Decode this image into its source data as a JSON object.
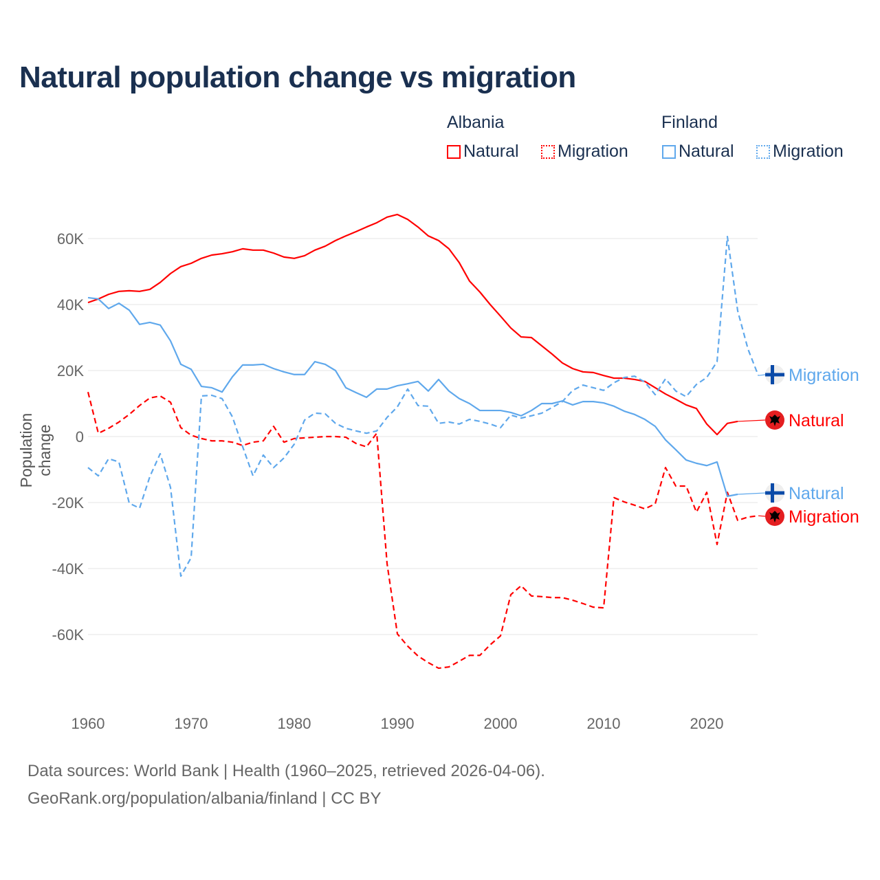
{
  "title": "Natural population change vs migration",
  "legend": {
    "groups": [
      {
        "name": "Albania",
        "items": [
          {
            "label": "Natural",
            "style": "solid",
            "color": "#ff0000"
          },
          {
            "label": "Migration",
            "style": "dotted",
            "color": "#ff0000"
          }
        ]
      },
      {
        "name": "Finland",
        "items": [
          {
            "label": "Natural",
            "style": "solid",
            "color": "#5fa8ec"
          },
          {
            "label": "Migration",
            "style": "dotted",
            "color": "#5fa8ec"
          }
        ]
      }
    ]
  },
  "source": {
    "line1": "Data sources: World Bank | Health (1960–2025, retrieved 2026-04-06).",
    "line2": "GeoRank.org/population/albania/finland | CC BY"
  },
  "chart_data": {
    "type": "line",
    "title": "Natural population change vs migration",
    "xlabel": "",
    "ylabel": "Population change",
    "xlim": [
      1960,
      2025
    ],
    "ylim": [
      -80000,
      70000
    ],
    "xticks": [
      1960,
      1970,
      1980,
      1990,
      2000,
      2010,
      2020
    ],
    "xtick_labels": [
      "1960",
      "1970",
      "1980",
      "1990",
      "2000",
      "2010",
      "2020"
    ],
    "yticks": [
      60000,
      40000,
      20000,
      0,
      -20000,
      -40000,
      -60000
    ],
    "ytick_labels": [
      "60K",
      "40K",
      "20K",
      "0",
      "-20K",
      "-40K",
      "-60K"
    ],
    "grid": true,
    "legend_position": "top-right",
    "series": [
      {
        "name": "Albania Natural",
        "end_label": "Natural",
        "country": "Albania",
        "color": "#ff0000",
        "dash": false,
        "start": 1960,
        "values": [
          40.6,
          41.7,
          43.1,
          44,
          44.2,
          44,
          44.6,
          46.7,
          49.4,
          51.5,
          52.5,
          54,
          55,
          55.4,
          56,
          56.9,
          56.5,
          56.5,
          55.6,
          54.4,
          54,
          54.8,
          56.5,
          57.7,
          59.4,
          60.8,
          62.1,
          63.5,
          64.8,
          66.5,
          67.3,
          65.8,
          63.5,
          60.8,
          59.4,
          56.9,
          52.7,
          47.1,
          43.8,
          40,
          36.5,
          32.9,
          30.2,
          30,
          27.5,
          25,
          22.3,
          20.6,
          19.6,
          19.4,
          18.5,
          17.7,
          17.7,
          17.3,
          16.7,
          14.8,
          12.9,
          11.3,
          9.6,
          8.5,
          3.8,
          0.6,
          4,
          4.6
        ]
      },
      {
        "name": "Albania Migration",
        "end_label": "Migration",
        "country": "Albania",
        "color": "#ff0000",
        "dash": true,
        "start": 1960,
        "values": [
          13.5,
          1,
          2.5,
          4.4,
          6.7,
          9.4,
          11.7,
          12.3,
          10.4,
          2.7,
          0.4,
          -0.6,
          -1.3,
          -1.3,
          -1.7,
          -2.7,
          -1.7,
          -1.3,
          3.1,
          -1.7,
          -0.6,
          -0.4,
          -0.2,
          0,
          0,
          -0.2,
          -2.1,
          -3.1,
          1,
          -38.5,
          -59.8,
          -63.5,
          -66.5,
          -68.5,
          -70.2,
          -69.8,
          -68.1,
          -66.3,
          -66.3,
          -63.1,
          -60.4,
          -47.9,
          -45.2,
          -48.3,
          -48.5,
          -48.8,
          -48.8,
          -49.6,
          -50.6,
          -51.7,
          -51.9,
          -18.5,
          -19.8,
          -20.8,
          -21.9,
          -20.4,
          -9.4,
          -15,
          -15,
          -22.9,
          -16.9,
          -32.7,
          -16.9,
          -25.4,
          -24.4,
          -24
        ]
      },
      {
        "name": "Finland Natural",
        "end_label": "Natural",
        "country": "Finland",
        "color": "#5fa8ec",
        "dash": false,
        "start": 1960,
        "values": [
          42.1,
          41.7,
          38.8,
          40.4,
          38.3,
          34,
          34.6,
          33.8,
          29,
          21.9,
          20.4,
          15.2,
          14.8,
          13.5,
          18.1,
          21.7,
          21.7,
          21.9,
          20.6,
          19.6,
          18.8,
          18.8,
          22.7,
          21.9,
          20,
          14.8,
          13.3,
          11.9,
          14.4,
          14.4,
          15.4,
          16,
          16.7,
          13.8,
          17.3,
          13.8,
          11.5,
          10,
          7.9,
          7.9,
          7.9,
          7.3,
          6.3,
          7.9,
          10,
          10,
          10.8,
          9.6,
          10.6,
          10.6,
          10.2,
          9.2,
          7.7,
          6.7,
          5.2,
          3.1,
          -1,
          -4,
          -7.1,
          -8.1,
          -8.8,
          -7.7,
          -18.1,
          -17.5
        ]
      },
      {
        "name": "Finland Migration",
        "end_label": "Migration",
        "country": "Finland",
        "color": "#5fa8ec",
        "dash": true,
        "start": 1960,
        "values": [
          -9.4,
          -11.9,
          -6.7,
          -7.7,
          -20.2,
          -21.7,
          -12.1,
          -5.2,
          -15.4,
          -42.3,
          -36.7,
          12.3,
          12.5,
          11.5,
          6,
          -3.1,
          -11.9,
          -5.6,
          -9.4,
          -6.5,
          -2.3,
          5,
          7.1,
          6.9,
          4,
          2.5,
          1.7,
          1,
          1.7,
          5.8,
          9,
          14.4,
          9.4,
          9.2,
          4,
          4.4,
          3.8,
          5.2,
          4.6,
          3.8,
          2.7,
          6.5,
          5.6,
          6.3,
          7.1,
          8.8,
          10.6,
          14,
          15.6,
          14.8,
          14,
          16.3,
          17.9,
          18.3,
          16.5,
          12.7,
          17.5,
          13.8,
          12.1,
          15.8,
          17.9,
          22.7,
          60.6,
          38.1,
          26.5,
          18.5
        ]
      }
    ],
    "value_units": "thousands"
  }
}
